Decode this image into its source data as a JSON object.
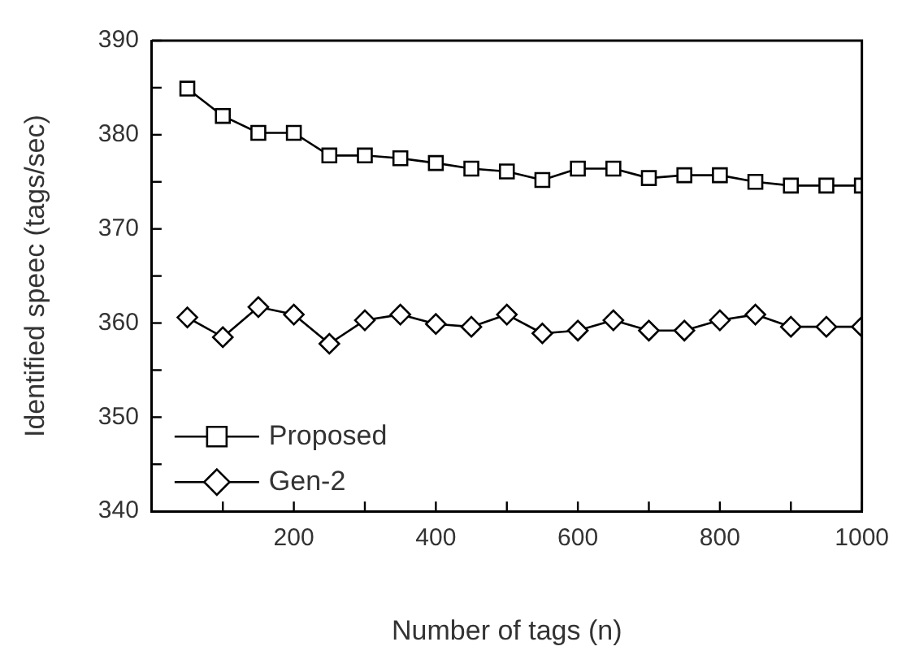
{
  "chart_data": {
    "type": "line",
    "xlabel": "Number of tags (n)",
    "ylabel": "Identified speec (tags/sec)",
    "x": [
      50,
      100,
      150,
      200,
      250,
      300,
      350,
      400,
      450,
      500,
      550,
      600,
      650,
      700,
      750,
      800,
      850,
      900,
      950,
      1000
    ],
    "series": [
      {
        "name": "Proposed",
        "color": "#000000",
        "marker": "square",
        "values": [
          384.9,
          382.0,
          380.2,
          380.2,
          377.8,
          377.8,
          377.5,
          377.0,
          376.4,
          376.1,
          375.2,
          376.4,
          376.4,
          375.4,
          375.7,
          375.7,
          375.0,
          374.6,
          374.6,
          374.6
        ]
      },
      {
        "name": "Gen-2",
        "color": "#000000",
        "marker": "diamond",
        "values": [
          360.6,
          358.5,
          361.7,
          360.9,
          357.8,
          360.3,
          360.9,
          359.9,
          359.6,
          360.9,
          358.9,
          359.2,
          360.3,
          359.2,
          359.2,
          360.3,
          360.9,
          359.6,
          359.6,
          359.6
        ]
      }
    ],
    "xlim": [
      0,
      1000
    ],
    "xticks": [
      {
        "value": 100,
        "label": null
      },
      200,
      {
        "value": 300,
        "label": null
      },
      400,
      {
        "value": 500,
        "label": null
      },
      600,
      {
        "value": 700,
        "label": null
      },
      800,
      {
        "value": 900,
        "label": null
      },
      1000
    ],
    "ylim": [
      340,
      390
    ],
    "yticks": [
      340,
      {
        "value": 345,
        "label": null
      },
      350,
      {
        "value": 355,
        "label": null
      },
      360,
      {
        "value": 365,
        "label": null
      },
      370,
      {
        "value": 375,
        "label": null
      },
      380,
      {
        "value": 385,
        "label": null
      },
      390
    ],
    "grid": false,
    "legend": "bottom left",
    "line_style": "solid"
  }
}
